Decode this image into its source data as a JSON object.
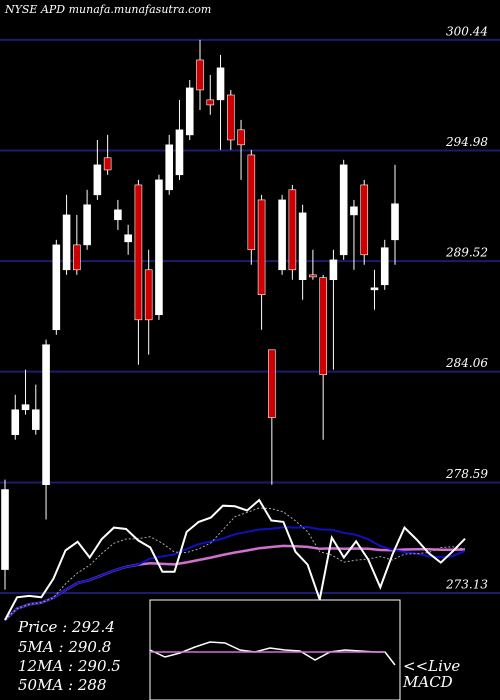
{
  "chart_data": {
    "type": "candlestick",
    "title": "NYSE APD munafa.munafasutra.com",
    "ylim": [
      267.85,
      302.41
    ],
    "yticks": [
      300.44,
      294.98,
      289.52,
      284.06,
      278.59,
      273.13
    ],
    "grid": true,
    "up_color": "#ffffff",
    "down_color": "#cc0000",
    "grid_color": "#1c1c6e",
    "candles": [
      {
        "open": 274.29,
        "high": 278.73,
        "low": 273.3,
        "close": 278.24
      },
      {
        "open": 280.95,
        "high": 282.92,
        "low": 280.7,
        "close": 282.18
      },
      {
        "open": 282.18,
        "high": 284.16,
        "low": 281.94,
        "close": 282.43
      },
      {
        "open": 281.2,
        "high": 283.42,
        "low": 280.95,
        "close": 282.18
      },
      {
        "open": 278.48,
        "high": 285.64,
        "low": 276.76,
        "close": 285.39
      },
      {
        "open": 286.13,
        "high": 290.57,
        "low": 285.88,
        "close": 290.32
      },
      {
        "open": 289.09,
        "high": 292.79,
        "low": 288.84,
        "close": 291.8
      },
      {
        "open": 290.32,
        "high": 291.8,
        "low": 288.84,
        "close": 289.09
      },
      {
        "open": 290.32,
        "high": 293.04,
        "low": 290.08,
        "close": 292.3
      },
      {
        "open": 292.79,
        "high": 295.5,
        "low": 292.54,
        "close": 294.27
      },
      {
        "open": 294.62,
        "high": 295.75,
        "low": 293.78,
        "close": 294.02
      },
      {
        "open": 291.56,
        "high": 292.54,
        "low": 291.06,
        "close": 292.05
      },
      {
        "open": 290.47,
        "high": 291.31,
        "low": 289.83,
        "close": 290.82
      },
      {
        "open": 293.28,
        "high": 293.53,
        "low": 284.4,
        "close": 286.62
      },
      {
        "open": 289.09,
        "high": 290.08,
        "low": 284.9,
        "close": 286.62
      },
      {
        "open": 286.87,
        "high": 293.78,
        "low": 286.62,
        "close": 293.53
      },
      {
        "open": 293.04,
        "high": 295.75,
        "low": 292.79,
        "close": 295.26
      },
      {
        "open": 293.78,
        "high": 297.48,
        "low": 293.53,
        "close": 296.0
      },
      {
        "open": 295.75,
        "high": 298.46,
        "low": 295.5,
        "close": 298.07
      },
      {
        "open": 299.45,
        "high": 300.44,
        "low": 296.98,
        "close": 297.97
      },
      {
        "open": 297.48,
        "high": 298.71,
        "low": 296.74,
        "close": 297.23
      },
      {
        "open": 297.48,
        "high": 299.7,
        "low": 295.01,
        "close": 299.06
      },
      {
        "open": 297.72,
        "high": 297.97,
        "low": 295.01,
        "close": 295.5
      },
      {
        "open": 296.0,
        "high": 296.49,
        "low": 293.53,
        "close": 295.26
      },
      {
        "open": 294.76,
        "high": 295.01,
        "low": 289.34,
        "close": 290.08
      },
      {
        "open": 292.54,
        "high": 292.79,
        "low": 286.13,
        "close": 287.86
      },
      {
        "open": 285.14,
        "high": 285.14,
        "low": 278.48,
        "close": 281.79
      },
      {
        "open": 289.09,
        "high": 292.79,
        "low": 288.84,
        "close": 292.54
      },
      {
        "open": 293.04,
        "high": 293.28,
        "low": 288.6,
        "close": 289.09
      },
      {
        "open": 288.6,
        "high": 292.3,
        "low": 287.61,
        "close": 291.9
      },
      {
        "open": 288.84,
        "high": 290.08,
        "low": 288.6,
        "close": 288.74
      },
      {
        "open": 288.7,
        "high": 288.84,
        "low": 280.7,
        "close": 283.91
      },
      {
        "open": 288.6,
        "high": 290.08,
        "low": 284.16,
        "close": 289.58
      },
      {
        "open": 289.83,
        "high": 294.52,
        "low": 289.58,
        "close": 294.27
      },
      {
        "open": 291.8,
        "high": 292.54,
        "low": 289.09,
        "close": 292.2
      },
      {
        "open": 293.28,
        "high": 293.53,
        "low": 289.34,
        "close": 289.83
      },
      {
        "open": 288.1,
        "high": 289.09,
        "low": 287.12,
        "close": 288.2
      },
      {
        "open": 288.35,
        "high": 290.57,
        "low": 288.1,
        "close": 290.18
      },
      {
        "open": 290.57,
        "high": 294.27,
        "low": 289.34,
        "close": 292.35
      }
    ],
    "legend": [
      "Price  : 292.4",
      "5MA : 290.8",
      "12MA : 290.5",
      "50MA : 288"
    ],
    "live_label": "<<Live",
    "macd_label": "MACD"
  }
}
